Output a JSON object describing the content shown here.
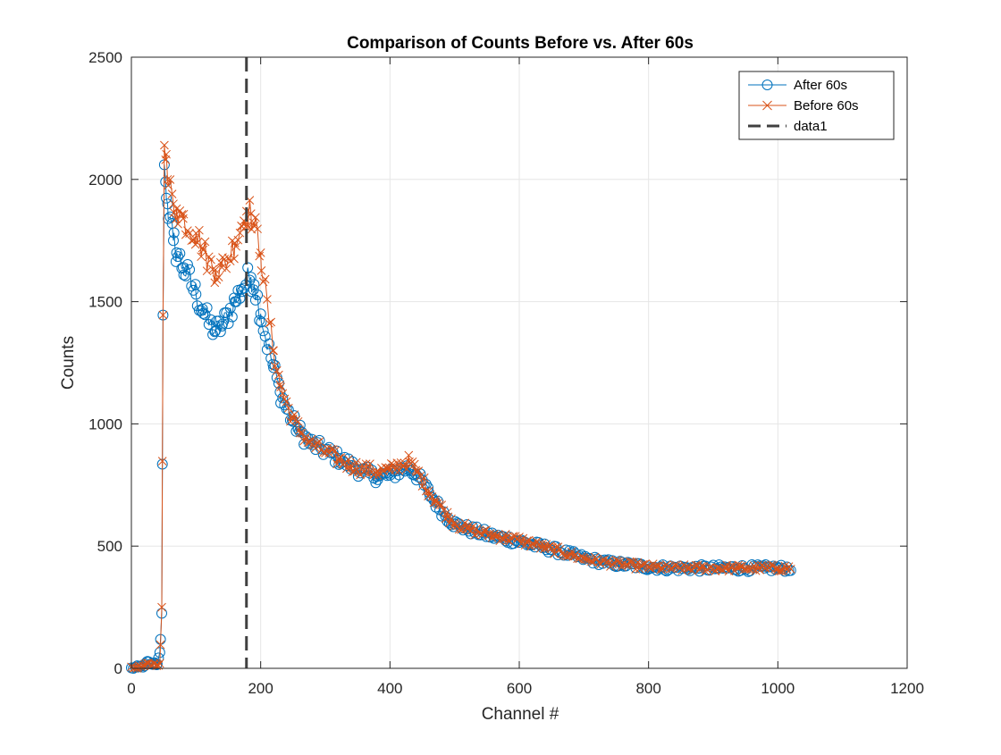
{
  "chart_data": {
    "type": "line",
    "title": "Comparison of Counts Before vs. After 60s",
    "xlabel": "Channel #",
    "ylabel": "Counts",
    "xlim": [
      0,
      1200
    ],
    "ylim": [
      0,
      2500
    ],
    "xticks": [
      "0",
      "200",
      "400",
      "600",
      "800",
      "1000",
      "1200"
    ],
    "yticks": [
      "0",
      "500",
      "1000",
      "1500",
      "2000",
      "2500"
    ],
    "grid": true,
    "legend_position": "top-right",
    "series": [
      {
        "name": "After 60s",
        "color": "#0072BD",
        "marker": "circle",
        "points": [
          [
            0,
            0
          ],
          [
            10,
            5
          ],
          [
            20,
            10
          ],
          [
            25,
            28
          ],
          [
            30,
            15
          ],
          [
            35,
            20
          ],
          [
            40,
            18
          ],
          [
            44,
            65
          ],
          [
            47,
            225
          ],
          [
            49,
            1445
          ],
          [
            51,
            2060
          ],
          [
            53,
            1990
          ],
          [
            56,
            1900
          ],
          [
            60,
            1810
          ],
          [
            65,
            1750
          ],
          [
            70,
            1700
          ],
          [
            75,
            1670
          ],
          [
            80,
            1640
          ],
          [
            90,
            1590
          ],
          [
            100,
            1530
          ],
          [
            110,
            1470
          ],
          [
            120,
            1410
          ],
          [
            130,
            1380
          ],
          [
            140,
            1400
          ],
          [
            150,
            1450
          ],
          [
            160,
            1500
          ],
          [
            170,
            1550
          ],
          [
            180,
            1590
          ],
          [
            185,
            1600
          ],
          [
            190,
            1570
          ],
          [
            195,
            1510
          ],
          [
            200,
            1450
          ],
          [
            210,
            1330
          ],
          [
            220,
            1230
          ],
          [
            230,
            1130
          ],
          [
            240,
            1060
          ],
          [
            250,
            1010
          ],
          [
            260,
            970
          ],
          [
            270,
            940
          ],
          [
            280,
            915
          ],
          [
            300,
            890
          ],
          [
            320,
            860
          ],
          [
            340,
            830
          ],
          [
            360,
            800
          ],
          [
            380,
            785
          ],
          [
            400,
            790
          ],
          [
            420,
            815
          ],
          [
            430,
            820
          ],
          [
            440,
            795
          ],
          [
            450,
            760
          ],
          [
            460,
            720
          ],
          [
            470,
            680
          ],
          [
            480,
            645
          ],
          [
            490,
            615
          ],
          [
            500,
            590
          ],
          [
            520,
            570
          ],
          [
            540,
            555
          ],
          [
            560,
            540
          ],
          [
            580,
            530
          ],
          [
            600,
            520
          ],
          [
            620,
            505
          ],
          [
            640,
            495
          ],
          [
            660,
            480
          ],
          [
            680,
            465
          ],
          [
            700,
            450
          ],
          [
            720,
            440
          ],
          [
            740,
            430
          ],
          [
            760,
            425
          ],
          [
            780,
            420
          ],
          [
            800,
            415
          ],
          [
            820,
            412
          ],
          [
            840,
            410
          ],
          [
            860,
            410
          ],
          [
            880,
            410
          ],
          [
            900,
            410
          ],
          [
            920,
            410
          ],
          [
            940,
            410
          ],
          [
            960,
            410
          ],
          [
            980,
            410
          ],
          [
            1000,
            410
          ],
          [
            1020,
            410
          ]
        ]
      },
      {
        "name": "Before 60s",
        "color": "#D95319",
        "marker": "x",
        "points": [
          [
            0,
            0
          ],
          [
            10,
            5
          ],
          [
            20,
            10
          ],
          [
            25,
            20
          ],
          [
            30,
            15
          ],
          [
            35,
            18
          ],
          [
            40,
            15
          ],
          [
            44,
            20
          ],
          [
            47,
            250
          ],
          [
            49,
            1445
          ],
          [
            51,
            2140
          ],
          [
            53,
            2080
          ],
          [
            56,
            2000
          ],
          [
            60,
            1950
          ],
          [
            65,
            1900
          ],
          [
            70,
            1880
          ],
          [
            75,
            1860
          ],
          [
            80,
            1840
          ],
          [
            90,
            1810
          ],
          [
            100,
            1780
          ],
          [
            110,
            1720
          ],
          [
            120,
            1660
          ],
          [
            130,
            1630
          ],
          [
            140,
            1640
          ],
          [
            150,
            1680
          ],
          [
            160,
            1740
          ],
          [
            170,
            1810
          ],
          [
            178,
            1870
          ],
          [
            185,
            1860
          ],
          [
            190,
            1810
          ],
          [
            195,
            1760
          ],
          [
            200,
            1700
          ],
          [
            210,
            1480
          ],
          [
            220,
            1300
          ],
          [
            230,
            1160
          ],
          [
            240,
            1080
          ],
          [
            250,
            1020
          ],
          [
            260,
            975
          ],
          [
            270,
            945
          ],
          [
            280,
            915
          ],
          [
            300,
            885
          ],
          [
            320,
            855
          ],
          [
            340,
            830
          ],
          [
            360,
            815
          ],
          [
            380,
            805
          ],
          [
            400,
            810
          ],
          [
            420,
            840
          ],
          [
            430,
            845
          ],
          [
            440,
            810
          ],
          [
            450,
            770
          ],
          [
            460,
            725
          ],
          [
            470,
            690
          ],
          [
            480,
            655
          ],
          [
            490,
            620
          ],
          [
            500,
            595
          ],
          [
            520,
            570
          ],
          [
            540,
            555
          ],
          [
            560,
            545
          ],
          [
            580,
            535
          ],
          [
            600,
            525
          ],
          [
            620,
            510
          ],
          [
            640,
            495
          ],
          [
            660,
            480
          ],
          [
            680,
            465
          ],
          [
            700,
            450
          ],
          [
            720,
            440
          ],
          [
            740,
            432
          ],
          [
            760,
            425
          ],
          [
            780,
            420
          ],
          [
            800,
            415
          ],
          [
            820,
            412
          ],
          [
            840,
            410
          ],
          [
            860,
            410
          ],
          [
            880,
            410
          ],
          [
            900,
            410
          ],
          [
            920,
            410
          ],
          [
            940,
            410
          ],
          [
            960,
            410
          ],
          [
            980,
            410
          ],
          [
            1000,
            410
          ],
          [
            1020,
            410
          ]
        ]
      },
      {
        "name": "data1",
        "color": "#404040",
        "style": "dashed",
        "x": 178
      }
    ]
  }
}
